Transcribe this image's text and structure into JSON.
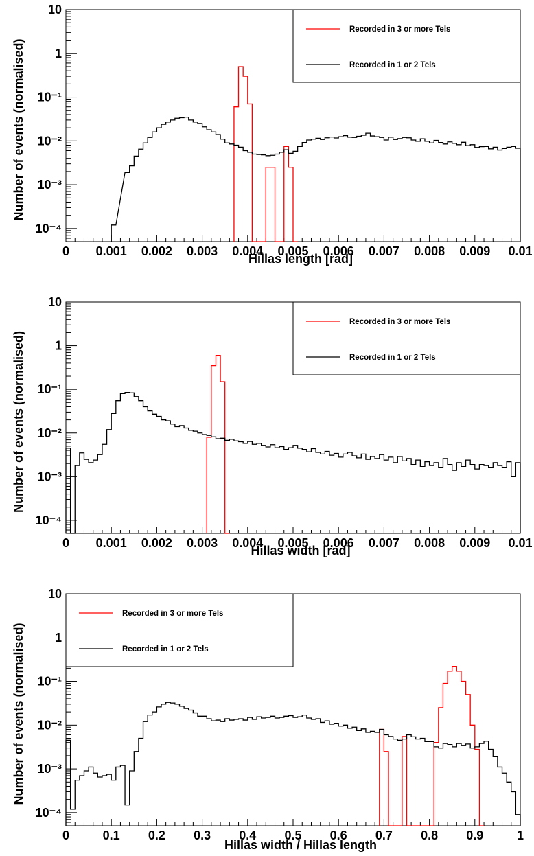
{
  "chart_data": [
    {
      "type": "histogram",
      "xlabel": "Hillas length [rad]",
      "ylabel": "Number of events (normalised)",
      "xlim": [
        0,
        0.01
      ],
      "ylim": [
        5e-05,
        10
      ],
      "yscale": "log",
      "xticks": [
        "0",
        "0.001",
        "0.002",
        "0.003",
        "0.004",
        "0.005",
        "0.006",
        "0.007",
        "0.008",
        "0.009",
        "0.01"
      ],
      "yticks": [
        "10⁻⁴",
        "10⁻³",
        "10⁻²",
        "10⁻¹",
        "1",
        "10"
      ],
      "legend_position": "top-right",
      "series": [
        {
          "name": "Recorded in 3 or more Tels",
          "color": "#ff0000",
          "x": [
            0.0037,
            0.0038,
            0.0039,
            0.004,
            0.0041,
            0.0042,
            0.0043,
            0.0044,
            0.0045,
            0.0046,
            0.0047,
            0.0048,
            0.0049,
            0.005
          ],
          "y": [
            0.06,
            0.5,
            0.3,
            0.07,
            0,
            0,
            0,
            0.0025,
            0.0025,
            0,
            0,
            0.0075,
            0.0025,
            0
          ]
        },
        {
          "name": "Recorded in 1 or 2 Tels",
          "color": "#000000",
          "x": [
            0.001,
            0.0013,
            0.0014,
            0.0015,
            0.0016,
            0.0017,
            0.0018,
            0.0019,
            0.002,
            0.0021,
            0.0022,
            0.0023,
            0.0024,
            0.0025,
            0.0026,
            0.0027,
            0.0028,
            0.0029,
            0.003,
            0.0031,
            0.0032,
            0.0033,
            0.0034,
            0.0035,
            0.0036,
            0.0037,
            0.0038,
            0.0039,
            0.004,
            0.0041,
            0.0042,
            0.0043,
            0.0044,
            0.0045,
            0.0046,
            0.0047,
            0.0048,
            0.0049,
            0.005,
            0.0051,
            0.0052,
            0.0053,
            0.0054,
            0.0055,
            0.0056,
            0.0057,
            0.0058,
            0.0059,
            0.006,
            0.0061,
            0.0062,
            0.0063,
            0.0064,
            0.0065,
            0.0066,
            0.0067,
            0.0068,
            0.0069,
            0.007,
            0.0071,
            0.0072,
            0.0073,
            0.0074,
            0.0075,
            0.0076,
            0.0077,
            0.0078,
            0.0079,
            0.008,
            0.0081,
            0.0082,
            0.0083,
            0.0084,
            0.0085,
            0.0086,
            0.0087,
            0.0088,
            0.0089,
            0.009,
            0.0091,
            0.0092,
            0.0093,
            0.0094,
            0.0095,
            0.0096,
            0.0097,
            0.0098,
            0.0099
          ],
          "y": [
            0.00012,
            0.0019,
            0.0027,
            0.0045,
            0.0065,
            0.009,
            0.012,
            0.016,
            0.02,
            0.024,
            0.027,
            0.03,
            0.033,
            0.034,
            0.035,
            0.03,
            0.027,
            0.025,
            0.021,
            0.018,
            0.016,
            0.014,
            0.011,
            0.009,
            0.0085,
            0.008,
            0.0072,
            0.006,
            0.0055,
            0.005,
            0.0049,
            0.0048,
            0.0046,
            0.0047,
            0.005,
            0.0055,
            0.0063,
            0.0052,
            0.0058,
            0.0075,
            0.0092,
            0.0105,
            0.011,
            0.0115,
            0.0108,
            0.0118,
            0.0123,
            0.0117,
            0.0125,
            0.0132,
            0.0122,
            0.012,
            0.0128,
            0.0135,
            0.015,
            0.013,
            0.0125,
            0.012,
            0.0105,
            0.0122,
            0.0108,
            0.0113,
            0.012,
            0.0118,
            0.0105,
            0.0098,
            0.0112,
            0.0098,
            0.009,
            0.0103,
            0.0092,
            0.0085,
            0.0095,
            0.0088,
            0.0082,
            0.0093,
            0.0078,
            0.0082,
            0.0071,
            0.0074,
            0.0075,
            0.0066,
            0.0072,
            0.0062,
            0.0067,
            0.0072,
            0.0075,
            0.0068
          ]
        }
      ]
    },
    {
      "type": "histogram",
      "xlabel": "Hillas width [rad]",
      "ylabel": "Number of events (normalised)",
      "xlim": [
        0,
        0.01
      ],
      "ylim": [
        5e-05,
        10
      ],
      "yscale": "log",
      "xticks": [
        "0",
        "0.001",
        "0.002",
        "0.003",
        "0.004",
        "0.005",
        "0.006",
        "0.007",
        "0.008",
        "0.009",
        "0.01"
      ],
      "yticks": [
        "10⁻⁴",
        "10⁻³",
        "10⁻²",
        "10⁻¹",
        "1",
        "10"
      ],
      "legend_position": "top-right",
      "series": [
        {
          "name": "Recorded in 3 or more Tels",
          "color": "#ff0000",
          "x": [
            0.0031,
            0.0032,
            0.0033,
            0.0034,
            0.0035
          ],
          "y": [
            0.008,
            0.35,
            0.6,
            0.15,
            0
          ]
        },
        {
          "name": "Recorded in 1 or 2 Tels",
          "color": "#000000",
          "x": [
            0.0,
            0.0001,
            0.0002,
            0.0003,
            0.0004,
            0.0005,
            0.0006,
            0.0007,
            0.0008,
            0.0009,
            0.001,
            0.0011,
            0.0012,
            0.0013,
            0.0014,
            0.0015,
            0.0016,
            0.0017,
            0.0018,
            0.0019,
            0.002,
            0.0021,
            0.0022,
            0.0023,
            0.0024,
            0.0025,
            0.0026,
            0.0027,
            0.0028,
            0.0029,
            0.003,
            0.0031,
            0.0032,
            0.0033,
            0.0034,
            0.0035,
            0.0036,
            0.0037,
            0.0038,
            0.0039,
            0.004,
            0.0041,
            0.0042,
            0.0043,
            0.0044,
            0.0045,
            0.0046,
            0.0047,
            0.0048,
            0.0049,
            0.005,
            0.0051,
            0.0052,
            0.0053,
            0.0054,
            0.0055,
            0.0056,
            0.0057,
            0.0058,
            0.0059,
            0.006,
            0.0061,
            0.0062,
            0.0063,
            0.0064,
            0.0065,
            0.0066,
            0.0067,
            0.0068,
            0.0069,
            0.007,
            0.0071,
            0.0072,
            0.0073,
            0.0074,
            0.0075,
            0.0076,
            0.0077,
            0.0078,
            0.0079,
            0.008,
            0.0081,
            0.0082,
            0.0083,
            0.0084,
            0.0085,
            0.0086,
            0.0087,
            0.0088,
            0.0089,
            0.009,
            0.0091,
            0.0092,
            0.0093,
            0.0094,
            0.0095,
            0.0096,
            0.0097,
            0.0098,
            0.0099
          ],
          "y": [
            0.0045,
            0,
            0.0018,
            0.0035,
            0.0025,
            0.0021,
            0.0024,
            0.0032,
            0.0055,
            0.012,
            0.028,
            0.055,
            0.08,
            0.085,
            0.083,
            0.068,
            0.055,
            0.04,
            0.032,
            0.027,
            0.024,
            0.02,
            0.019,
            0.016,
            0.014,
            0.0148,
            0.013,
            0.0115,
            0.011,
            0.01,
            0.0092,
            0.0088,
            0.0082,
            0.0074,
            0.0076,
            0.0068,
            0.0072,
            0.0066,
            0.0063,
            0.0058,
            0.0064,
            0.0055,
            0.0058,
            0.0052,
            0.0048,
            0.0054,
            0.0046,
            0.0049,
            0.0042,
            0.0046,
            0.0052,
            0.0045,
            0.0042,
            0.0037,
            0.0044,
            0.0036,
            0.0033,
            0.0038,
            0.0031,
            0.0034,
            0.0028,
            0.0033,
            0.0036,
            0.003,
            0.0027,
            0.0033,
            0.0025,
            0.0029,
            0.0026,
            0.0032,
            0.0024,
            0.0028,
            0.0021,
            0.0029,
            0.0023,
            0.0026,
            0.0019,
            0.0024,
            0.0017,
            0.0022,
            0.0018,
            0.0021,
            0.0016,
            0.0026,
            0.0019,
            0.0014,
            0.0021,
            0.0017,
            0.0024,
            0.0019,
            0.0015,
            0.0019,
            0.0018,
            0.0016,
            0.0021,
            0.0018,
            0.0016,
            0.0022,
            0.001,
            0.0021
          ]
        }
      ]
    },
    {
      "type": "histogram",
      "xlabel": "Hillas width / Hillas length",
      "ylabel": "Number of events (normalised)",
      "xlim": [
        0,
        1
      ],
      "ylim": [
        5e-05,
        10
      ],
      "yscale": "log",
      "xticks": [
        "0",
        "0.1",
        "0.2",
        "0.3",
        "0.4",
        "0.5",
        "0.6",
        "0.7",
        "0.8",
        "0.9",
        "1"
      ],
      "yticks": [
        "10⁻⁴",
        "10⁻³",
        "10⁻²",
        "10⁻¹",
        "1",
        "10"
      ],
      "legend_position": "top-left",
      "series": [
        {
          "name": "Recorded in 3 or more Tels",
          "color": "#ff0000",
          "x": [
            0.69,
            0.7,
            0.71,
            0.72,
            0.73,
            0.74,
            0.75,
            0.76,
            0.77,
            0.78,
            0.79,
            0.8,
            0.81,
            0.82,
            0.83,
            0.84,
            0.85,
            0.86,
            0.87,
            0.88,
            0.89,
            0.9,
            0.91
          ],
          "y": [
            0.008,
            0.0025,
            0,
            0,
            0,
            0.0055,
            0,
            0,
            0,
            0,
            0,
            0,
            0.004,
            0.025,
            0.09,
            0.17,
            0.22,
            0.17,
            0.1,
            0.05,
            0.01,
            0.0028,
            0
          ]
        },
        {
          "name": "Recorded in 1 or 2 Tels",
          "color": "#000000",
          "x": [
            0.0,
            0.01,
            0.02,
            0.03,
            0.04,
            0.05,
            0.06,
            0.07,
            0.08,
            0.09,
            0.1,
            0.11,
            0.12,
            0.13,
            0.14,
            0.15,
            0.16,
            0.17,
            0.18,
            0.19,
            0.2,
            0.21,
            0.22,
            0.23,
            0.24,
            0.25,
            0.26,
            0.27,
            0.28,
            0.29,
            0.3,
            0.31,
            0.32,
            0.33,
            0.34,
            0.35,
            0.36,
            0.37,
            0.38,
            0.39,
            0.4,
            0.41,
            0.42,
            0.43,
            0.44,
            0.45,
            0.46,
            0.47,
            0.48,
            0.49,
            0.5,
            0.51,
            0.52,
            0.53,
            0.54,
            0.55,
            0.56,
            0.57,
            0.58,
            0.59,
            0.6,
            0.61,
            0.62,
            0.63,
            0.64,
            0.65,
            0.66,
            0.67,
            0.68,
            0.69,
            0.7,
            0.71,
            0.72,
            0.73,
            0.74,
            0.75,
            0.76,
            0.77,
            0.78,
            0.79,
            0.8,
            0.81,
            0.82,
            0.83,
            0.84,
            0.85,
            0.86,
            0.87,
            0.88,
            0.89,
            0.9,
            0.91,
            0.92,
            0.93,
            0.94,
            0.95,
            0.96,
            0.97,
            0.98,
            0.99
          ],
          "y": [
            0.0045,
            0.00012,
            0.00055,
            0.0007,
            0.0009,
            0.0011,
            0.0008,
            0.00065,
            0.0007,
            0.00075,
            0.00055,
            0.0011,
            0.0012,
            0.00015,
            0.0009,
            0.0025,
            0.005,
            0.012,
            0.017,
            0.02,
            0.026,
            0.03,
            0.033,
            0.032,
            0.03,
            0.027,
            0.024,
            0.022,
            0.019,
            0.016,
            0.016,
            0.014,
            0.0125,
            0.013,
            0.012,
            0.014,
            0.013,
            0.0135,
            0.014,
            0.013,
            0.015,
            0.0135,
            0.0155,
            0.0145,
            0.015,
            0.016,
            0.0145,
            0.015,
            0.016,
            0.0165,
            0.015,
            0.0155,
            0.017,
            0.0145,
            0.0135,
            0.014,
            0.0115,
            0.0125,
            0.0105,
            0.011,
            0.0095,
            0.01,
            0.0085,
            0.009,
            0.0075,
            0.0082,
            0.0068,
            0.0072,
            0.0068,
            0.008,
            0.006,
            0.0055,
            0.0048,
            0.0045,
            0.0048,
            0.006,
            0.0054,
            0.0048,
            0.005,
            0.0042,
            0.0042,
            0.0032,
            0.003,
            0.0038,
            0.0036,
            0.0032,
            0.0038,
            0.0034,
            0.0037,
            0.003,
            0.0032,
            0.0038,
            0.0043,
            0.0028,
            0.0019,
            0.0011,
            0.0008,
            0.0005,
            0.0003,
            9e-05
          ]
        }
      ]
    }
  ]
}
